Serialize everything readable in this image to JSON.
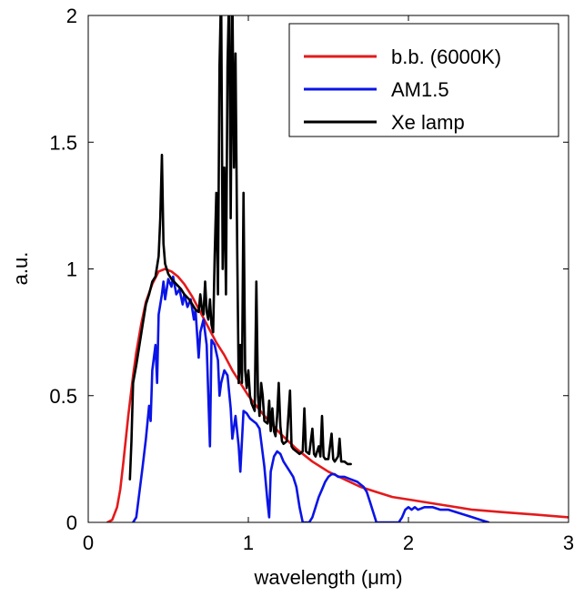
{
  "chart_data": {
    "type": "line",
    "title": "",
    "xlabel": "wavelength (μm)",
    "ylabel": "a.u.",
    "xlim": [
      0,
      3
    ],
    "ylim": [
      0,
      2
    ],
    "x_ticks": [
      {
        "value": 0,
        "label": "0"
      },
      {
        "value": 1,
        "label": "1"
      },
      {
        "value": 2,
        "label": "2"
      },
      {
        "value": 3,
        "label": "3"
      }
    ],
    "y_ticks": [
      {
        "value": 0,
        "label": "0"
      },
      {
        "value": 0.5,
        "label": "0.5"
      },
      {
        "value": 1,
        "label": "1"
      },
      {
        "value": 1.5,
        "label": "1.5"
      },
      {
        "value": 2,
        "label": "2"
      }
    ],
    "grid": false,
    "legend_position": "top-right",
    "series": [
      {
        "name": "b.b. (6000K)",
        "color": "#e41a1c",
        "points": [
          [
            0.12,
            0.0
          ],
          [
            0.15,
            0.01
          ],
          [
            0.18,
            0.06
          ],
          [
            0.2,
            0.13
          ],
          [
            0.22,
            0.24
          ],
          [
            0.25,
            0.42
          ],
          [
            0.28,
            0.58
          ],
          [
            0.3,
            0.67
          ],
          [
            0.33,
            0.78
          ],
          [
            0.36,
            0.87
          ],
          [
            0.4,
            0.94
          ],
          [
            0.44,
            0.99
          ],
          [
            0.48,
            1.0
          ],
          [
            0.52,
            0.99
          ],
          [
            0.56,
            0.97
          ],
          [
            0.6,
            0.94
          ],
          [
            0.65,
            0.89
          ],
          [
            0.7,
            0.83
          ],
          [
            0.75,
            0.77
          ],
          [
            0.8,
            0.71
          ],
          [
            0.85,
            0.66
          ],
          [
            0.9,
            0.6
          ],
          [
            0.95,
            0.55
          ],
          [
            1.0,
            0.5
          ],
          [
            1.1,
            0.42
          ],
          [
            1.2,
            0.35
          ],
          [
            1.3,
            0.29
          ],
          [
            1.4,
            0.24
          ],
          [
            1.5,
            0.2
          ],
          [
            1.6,
            0.17
          ],
          [
            1.7,
            0.14
          ],
          [
            1.8,
            0.12
          ],
          [
            1.9,
            0.1
          ],
          [
            2.0,
            0.09
          ],
          [
            2.2,
            0.07
          ],
          [
            2.4,
            0.05
          ],
          [
            2.6,
            0.04
          ],
          [
            2.8,
            0.03
          ],
          [
            3.0,
            0.02
          ]
        ]
      },
      {
        "name": "AM1.5",
        "color": "#0a14e6",
        "points": [
          [
            0.28,
            0.0
          ],
          [
            0.3,
            0.02
          ],
          [
            0.32,
            0.12
          ],
          [
            0.34,
            0.22
          ],
          [
            0.36,
            0.33
          ],
          [
            0.38,
            0.46
          ],
          [
            0.39,
            0.4
          ],
          [
            0.4,
            0.6
          ],
          [
            0.42,
            0.7
          ],
          [
            0.43,
            0.55
          ],
          [
            0.44,
            0.82
          ],
          [
            0.46,
            0.9
          ],
          [
            0.47,
            0.95
          ],
          [
            0.48,
            0.88
          ],
          [
            0.5,
            0.96
          ],
          [
            0.52,
            0.93
          ],
          [
            0.53,
            0.97
          ],
          [
            0.55,
            0.9
          ],
          [
            0.57,
            0.92
          ],
          [
            0.59,
            0.86
          ],
          [
            0.6,
            0.9
          ],
          [
            0.62,
            0.85
          ],
          [
            0.64,
            0.88
          ],
          [
            0.66,
            0.8
          ],
          [
            0.67,
            0.84
          ],
          [
            0.69,
            0.65
          ],
          [
            0.7,
            0.75
          ],
          [
            0.72,
            0.8
          ],
          [
            0.74,
            0.7
          ],
          [
            0.76,
            0.3
          ],
          [
            0.77,
            0.72
          ],
          [
            0.79,
            0.7
          ],
          [
            0.81,
            0.64
          ],
          [
            0.82,
            0.5
          ],
          [
            0.83,
            0.55
          ],
          [
            0.85,
            0.6
          ],
          [
            0.87,
            0.58
          ],
          [
            0.89,
            0.45
          ],
          [
            0.9,
            0.33
          ],
          [
            0.92,
            0.42
          ],
          [
            0.94,
            0.3
          ],
          [
            0.95,
            0.2
          ],
          [
            0.97,
            0.44
          ],
          [
            0.99,
            0.43
          ],
          [
            1.01,
            0.41
          ],
          [
            1.03,
            0.4
          ],
          [
            1.05,
            0.39
          ],
          [
            1.07,
            0.37
          ],
          [
            1.08,
            0.32
          ],
          [
            1.1,
            0.22
          ],
          [
            1.12,
            0.08
          ],
          [
            1.13,
            0.02
          ],
          [
            1.14,
            0.2
          ],
          [
            1.16,
            0.26
          ],
          [
            1.18,
            0.28
          ],
          [
            1.2,
            0.27
          ],
          [
            1.22,
            0.24
          ],
          [
            1.24,
            0.22
          ],
          [
            1.26,
            0.2
          ],
          [
            1.28,
            0.18
          ],
          [
            1.3,
            0.14
          ],
          [
            1.32,
            0.06
          ],
          [
            1.34,
            0.0
          ],
          [
            1.38,
            0.0
          ],
          [
            1.4,
            0.02
          ],
          [
            1.42,
            0.06
          ],
          [
            1.44,
            0.1
          ],
          [
            1.46,
            0.13
          ],
          [
            1.48,
            0.16
          ],
          [
            1.5,
            0.18
          ],
          [
            1.52,
            0.19
          ],
          [
            1.54,
            0.19
          ],
          [
            1.56,
            0.18
          ],
          [
            1.6,
            0.18
          ],
          [
            1.64,
            0.17
          ],
          [
            1.68,
            0.16
          ],
          [
            1.72,
            0.14
          ],
          [
            1.74,
            0.12
          ],
          [
            1.76,
            0.08
          ],
          [
            1.78,
            0.04
          ],
          [
            1.8,
            0.0
          ],
          [
            1.94,
            0.0
          ],
          [
            1.96,
            0.02
          ],
          [
            1.98,
            0.05
          ],
          [
            2.0,
            0.06
          ],
          [
            2.02,
            0.05
          ],
          [
            2.04,
            0.06
          ],
          [
            2.06,
            0.05
          ],
          [
            2.1,
            0.06
          ],
          [
            2.15,
            0.06
          ],
          [
            2.2,
            0.05
          ],
          [
            2.25,
            0.05
          ],
          [
            2.3,
            0.04
          ],
          [
            2.35,
            0.03
          ],
          [
            2.4,
            0.02
          ],
          [
            2.45,
            0.01
          ],
          [
            2.5,
            0.0
          ]
        ]
      },
      {
        "name": "Xe lamp",
        "color": "#000000",
        "points": [
          [
            0.26,
            0.17
          ],
          [
            0.27,
            0.32
          ],
          [
            0.28,
            0.55
          ],
          [
            0.3,
            0.62
          ],
          [
            0.32,
            0.7
          ],
          [
            0.34,
            0.78
          ],
          [
            0.36,
            0.86
          ],
          [
            0.38,
            0.9
          ],
          [
            0.4,
            0.95
          ],
          [
            0.42,
            0.97
          ],
          [
            0.44,
            1.05
          ],
          [
            0.45,
            1.2
          ],
          [
            0.46,
            1.45
          ],
          [
            0.47,
            1.1
          ],
          [
            0.48,
            1.02
          ],
          [
            0.5,
            0.98
          ],
          [
            0.52,
            0.96
          ],
          [
            0.55,
            0.94
          ],
          [
            0.58,
            0.92
          ],
          [
            0.6,
            0.9
          ],
          [
            0.63,
            0.88
          ],
          [
            0.65,
            0.86
          ],
          [
            0.67,
            0.84
          ],
          [
            0.69,
            0.83
          ],
          [
            0.7,
            0.9
          ],
          [
            0.71,
            0.84
          ],
          [
            0.72,
            0.82
          ],
          [
            0.73,
            0.95
          ],
          [
            0.74,
            0.83
          ],
          [
            0.75,
            0.8
          ],
          [
            0.76,
            0.88
          ],
          [
            0.77,
            0.78
          ],
          [
            0.78,
            0.75
          ],
          [
            0.79,
            1.05
          ],
          [
            0.8,
            1.3
          ],
          [
            0.81,
            0.9
          ],
          [
            0.82,
            1.8
          ],
          [
            0.83,
            2.1
          ],
          [
            0.84,
            1.0
          ],
          [
            0.85,
            1.4
          ],
          [
            0.86,
            0.9
          ],
          [
            0.87,
            1.8
          ],
          [
            0.88,
            2.1
          ],
          [
            0.89,
            1.2
          ],
          [
            0.9,
            2.1
          ],
          [
            0.91,
            1.4
          ],
          [
            0.92,
            1.85
          ],
          [
            0.93,
            1.1
          ],
          [
            0.94,
            0.55
          ],
          [
            0.95,
            0.7
          ],
          [
            0.96,
            0.55
          ],
          [
            0.97,
            1.3
          ],
          [
            0.98,
            0.6
          ],
          [
            0.99,
            0.53
          ],
          [
            1.0,
            0.6
          ],
          [
            1.01,
            0.5
          ],
          [
            1.02,
            0.47
          ],
          [
            1.04,
            0.44
          ],
          [
            1.05,
            0.95
          ],
          [
            1.06,
            0.5
          ],
          [
            1.07,
            0.42
          ],
          [
            1.08,
            0.55
          ],
          [
            1.09,
            0.5
          ],
          [
            1.1,
            0.4
          ],
          [
            1.12,
            0.39
          ],
          [
            1.13,
            0.48
          ],
          [
            1.14,
            0.36
          ],
          [
            1.15,
            0.45
          ],
          [
            1.16,
            0.36
          ],
          [
            1.17,
            0.34
          ],
          [
            1.18,
            0.42
          ],
          [
            1.19,
            0.55
          ],
          [
            1.2,
            0.38
          ],
          [
            1.21,
            0.32
          ],
          [
            1.22,
            0.31
          ],
          [
            1.24,
            0.32
          ],
          [
            1.26,
            0.52
          ],
          [
            1.27,
            0.3
          ],
          [
            1.28,
            0.29
          ],
          [
            1.3,
            0.28
          ],
          [
            1.32,
            0.27
          ],
          [
            1.34,
            0.28
          ],
          [
            1.35,
            0.45
          ],
          [
            1.36,
            0.28
          ],
          [
            1.38,
            0.27
          ],
          [
            1.4,
            0.37
          ],
          [
            1.41,
            0.27
          ],
          [
            1.42,
            0.26
          ],
          [
            1.44,
            0.3
          ],
          [
            1.45,
            0.26
          ],
          [
            1.46,
            0.42
          ],
          [
            1.47,
            0.26
          ],
          [
            1.48,
            0.25
          ],
          [
            1.5,
            0.25
          ],
          [
            1.52,
            0.35
          ],
          [
            1.53,
            0.25
          ],
          [
            1.54,
            0.24
          ],
          [
            1.56,
            0.26
          ],
          [
            1.57,
            0.33
          ],
          [
            1.58,
            0.24
          ],
          [
            1.6,
            0.24
          ],
          [
            1.62,
            0.23
          ],
          [
            1.64,
            0.23
          ]
        ]
      }
    ]
  }
}
